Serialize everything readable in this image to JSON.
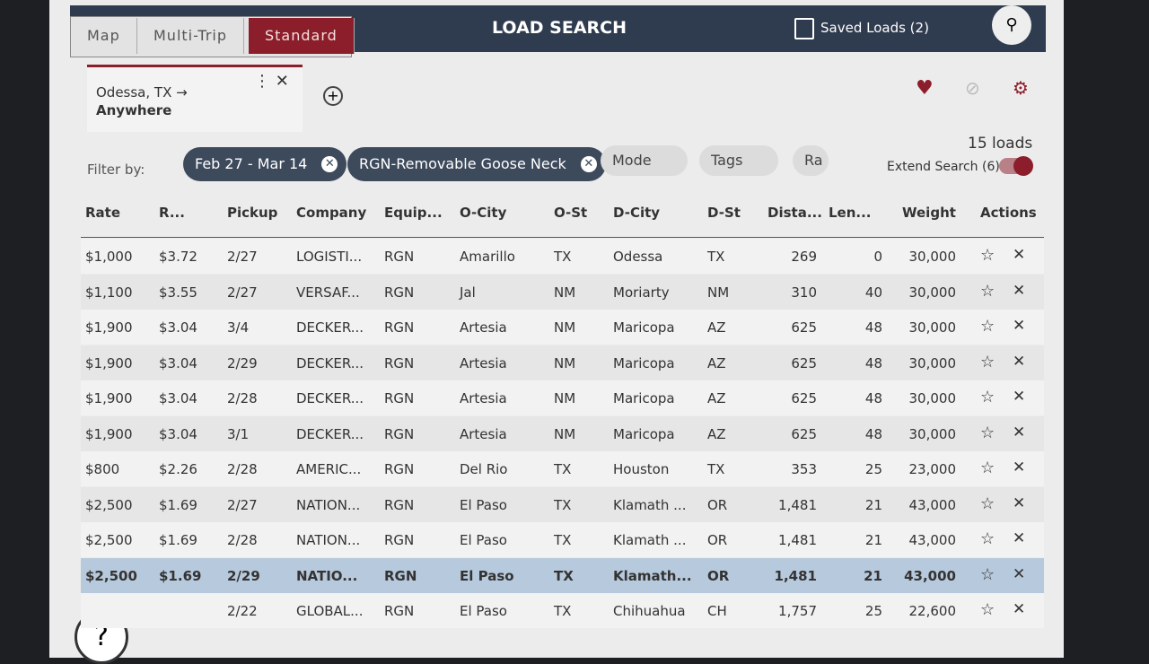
{
  "header": {
    "tabs": [
      "Map",
      "Multi-Trip",
      "Standard"
    ],
    "title": "LOAD SEARCH",
    "saved": "Saved Loads (2)"
  },
  "search": {
    "origin": "Odessa, TX",
    "destination": "Anywhere"
  },
  "filters": {
    "label": "Filter by:",
    "chips": [
      "Feb 27 - Mar 14",
      "RGN-Removable Goose Neck"
    ],
    "dropdowns": [
      "Mode",
      "Tags",
      "Ra"
    ],
    "count": "15 loads",
    "extend": "Extend Search (6)"
  },
  "table": {
    "columns": [
      "Rate",
      "R...",
      "Pickup",
      "Company",
      "Equip...",
      "O-City",
      "O-St",
      "D-City",
      "D-St",
      "Dista...",
      "Len...",
      "Weight",
      "Actions"
    ],
    "rows": [
      [
        "$1,000",
        "$3.72",
        "2/27",
        "LOGISTI...",
        "RGN",
        "Amarillo",
        "TX",
        "Odessa",
        "TX",
        "269",
        "0",
        "30,000"
      ],
      [
        "$1,100",
        "$3.55",
        "2/27",
        "VERSAF...",
        "RGN",
        "Jal",
        "NM",
        "Moriarty",
        "NM",
        "310",
        "40",
        "30,000"
      ],
      [
        "$1,900",
        "$3.04",
        "3/4",
        "DECKER...",
        "RGN",
        "Artesia",
        "NM",
        "Maricopa",
        "AZ",
        "625",
        "48",
        "30,000"
      ],
      [
        "$1,900",
        "$3.04",
        "2/29",
        "DECKER...",
        "RGN",
        "Artesia",
        "NM",
        "Maricopa",
        "AZ",
        "625",
        "48",
        "30,000"
      ],
      [
        "$1,900",
        "$3.04",
        "2/28",
        "DECKER...",
        "RGN",
        "Artesia",
        "NM",
        "Maricopa",
        "AZ",
        "625",
        "48",
        "30,000"
      ],
      [
        "$1,900",
        "$3.04",
        "3/1",
        "DECKER...",
        "RGN",
        "Artesia",
        "NM",
        "Maricopa",
        "AZ",
        "625",
        "48",
        "30,000"
      ],
      [
        "$800",
        "$2.26",
        "2/28",
        "AMERIC...",
        "RGN",
        "Del Rio",
        "TX",
        "Houston",
        "TX",
        "353",
        "25",
        "23,000"
      ],
      [
        "$2,500",
        "$1.69",
        "2/27",
        "NATION...",
        "RGN",
        "El Paso",
        "TX",
        "Klamath ...",
        "OR",
        "1,481",
        "21",
        "43,000"
      ],
      [
        "$2,500",
        "$1.69",
        "2/28",
        "NATION...",
        "RGN",
        "El Paso",
        "TX",
        "Klamath ...",
        "OR",
        "1,481",
        "21",
        "43,000"
      ],
      [
        "$2,500",
        "$1.69",
        "2/29",
        "NATIO...",
        "RGN",
        "El Paso",
        "TX",
        "Klamath...",
        "OR",
        "1,481",
        "21",
        "43,000"
      ],
      [
        null,
        null,
        "2/22",
        "GLOBAL...",
        "RGN",
        "El Paso",
        "TX",
        "Chihuahua",
        "CH",
        "1,757",
        "25",
        "22,600"
      ]
    ]
  }
}
